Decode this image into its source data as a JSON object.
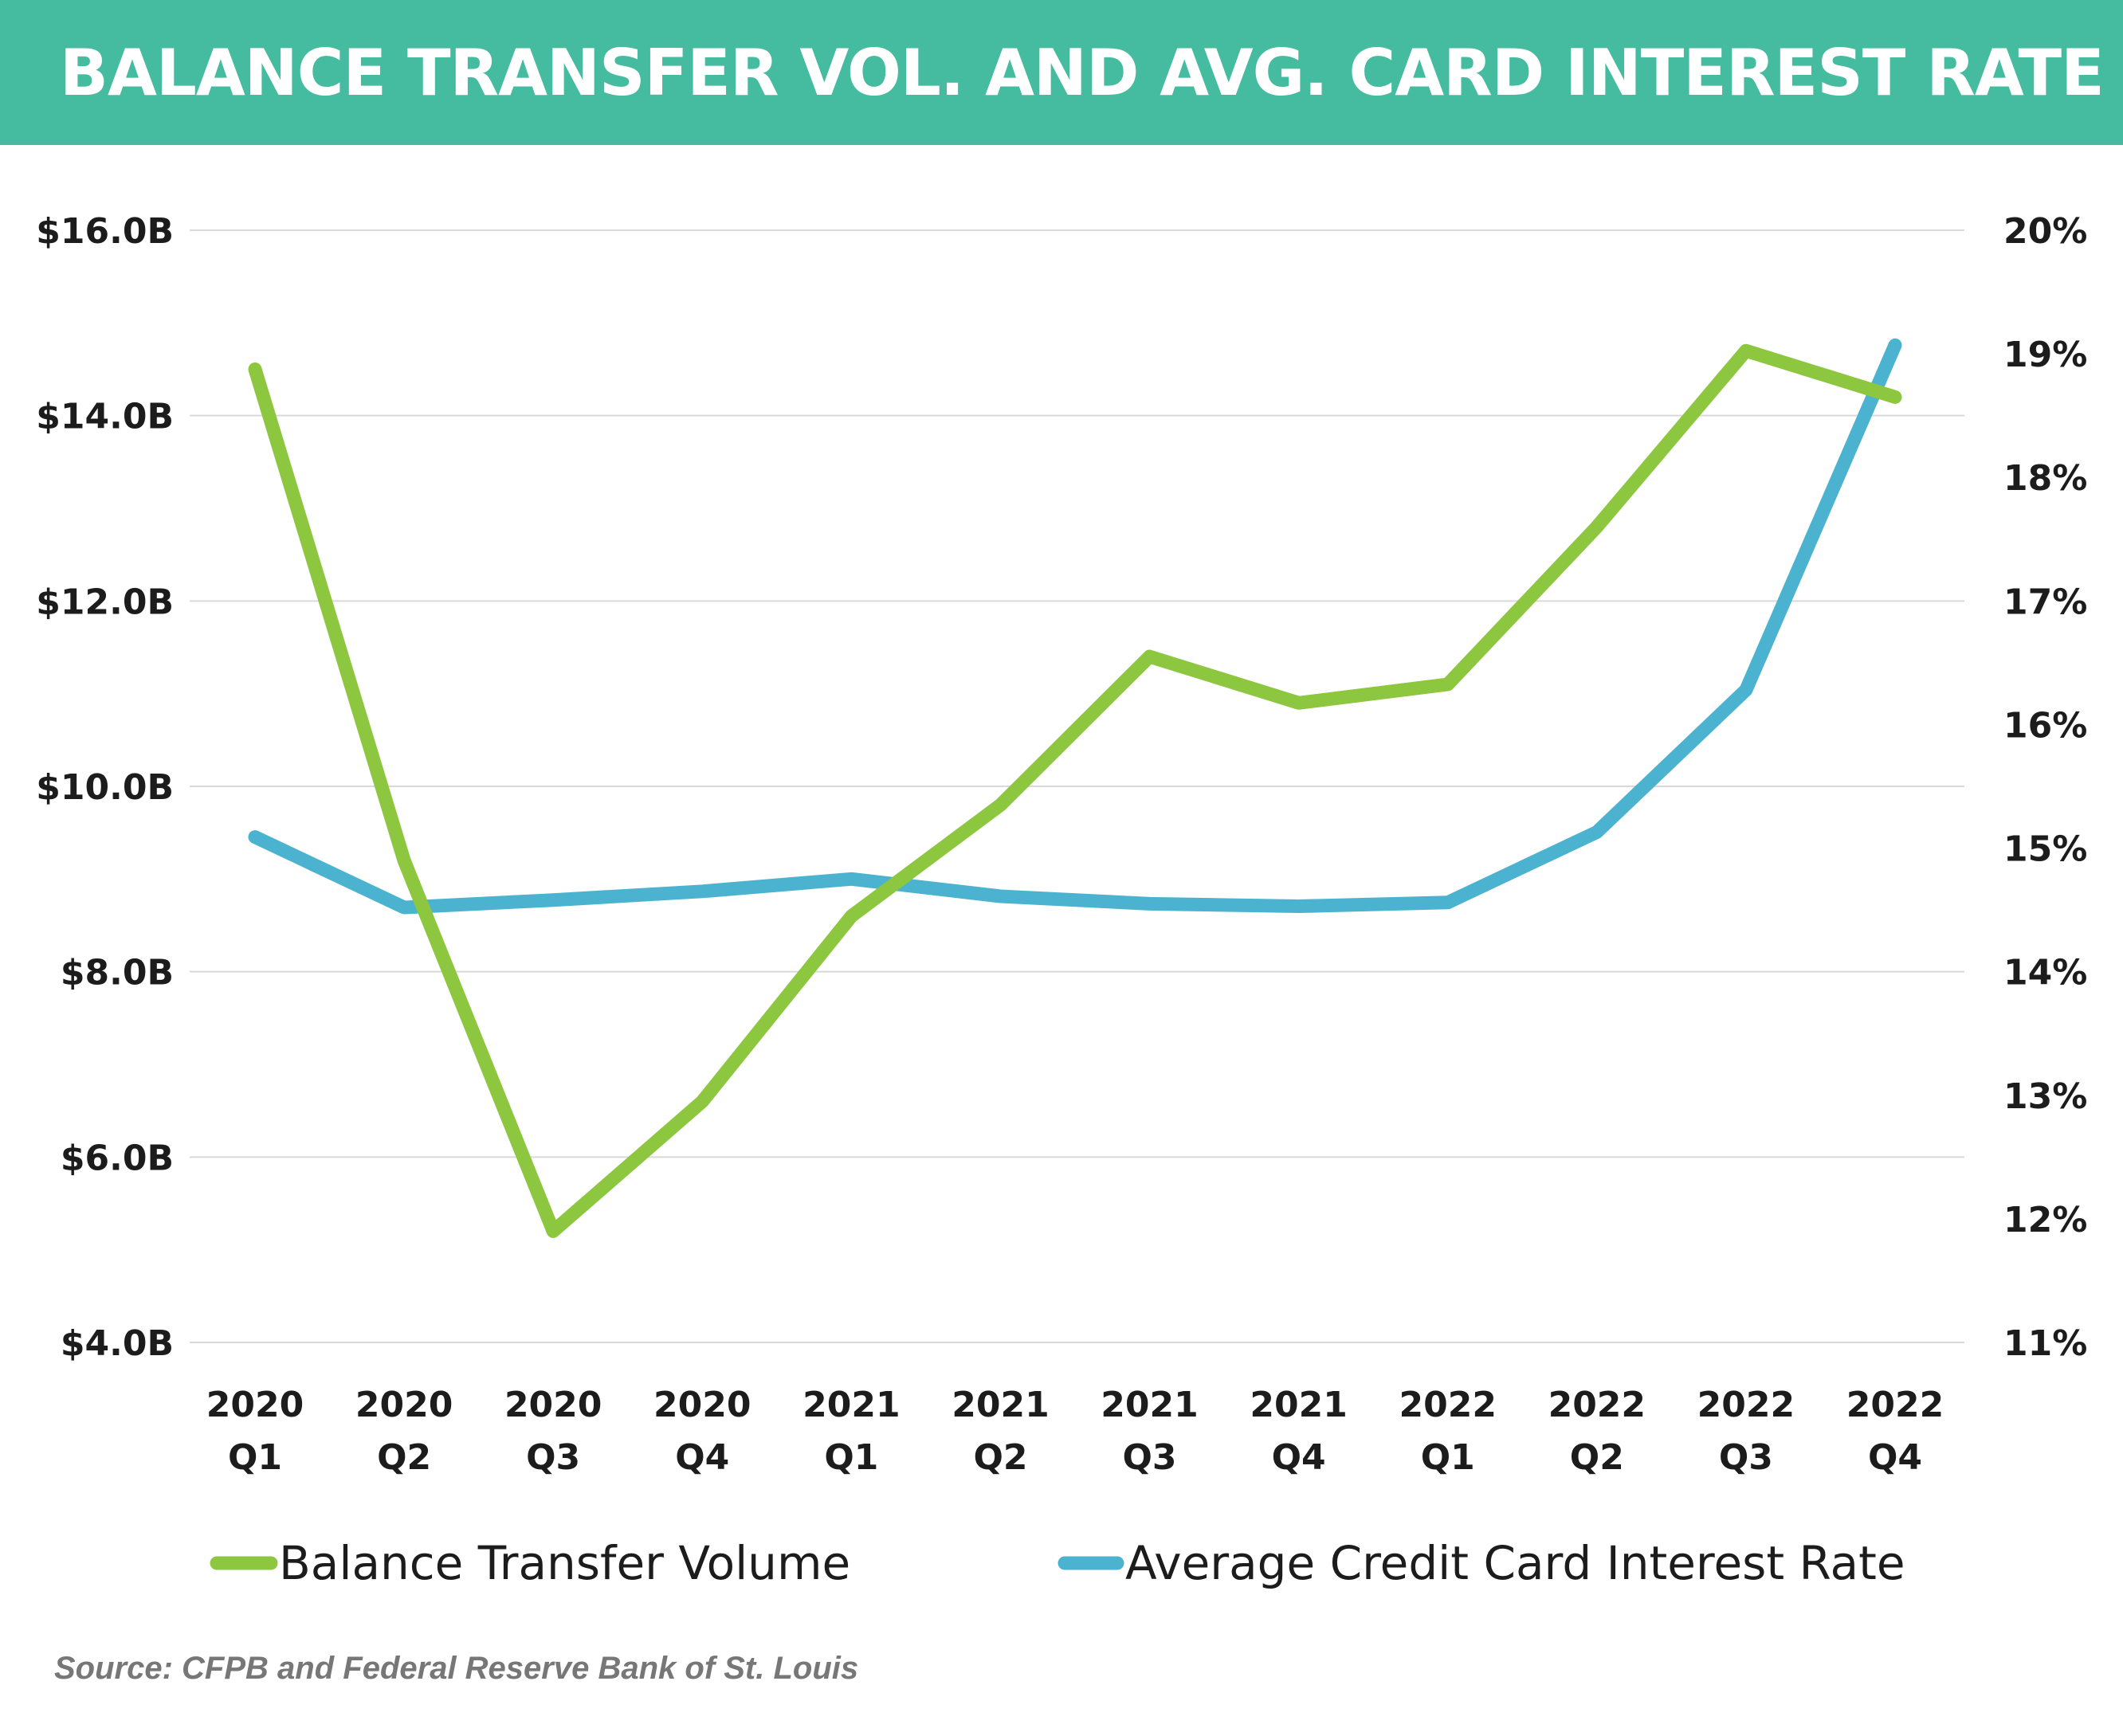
{
  "title": "BALANCE TRANSFER VOL. AND AVG. CARD INTEREST RATE",
  "source": "Source: CFPB and Federal Reserve Bank of St. Louis",
  "colors": {
    "header": "#45bc9f",
    "balance_transfer": "#8dc63f",
    "interest_rate": "#4bb3cf",
    "grid": "#d9d9d9"
  },
  "chart_data": {
    "type": "line",
    "title": "BALANCE TRANSFER VOL. AND AVG. CARD INTEREST RATE",
    "categories": [
      [
        "2020",
        "Q1"
      ],
      [
        "2020",
        "Q2"
      ],
      [
        "2020",
        "Q3"
      ],
      [
        "2020",
        "Q4"
      ],
      [
        "2021",
        "Q1"
      ],
      [
        "2021",
        "Q2"
      ],
      [
        "2021",
        "Q3"
      ],
      [
        "2021",
        "Q4"
      ],
      [
        "2022",
        "Q1"
      ],
      [
        "2022",
        "Q2"
      ],
      [
        "2022",
        "Q3"
      ],
      [
        "2022",
        "Q4"
      ]
    ],
    "left_axis": {
      "ylim": [
        4.0,
        16.0
      ],
      "ticks": [
        4.0,
        6.0,
        8.0,
        10.0,
        12.0,
        14.0,
        16.0
      ],
      "tick_labels": [
        "$4.0B",
        "$6.0B",
        "$8.0B",
        "$10.0B",
        "$12.0B",
        "$14.0B",
        "$16.0B"
      ]
    },
    "right_axis": {
      "ylim": [
        11,
        20
      ],
      "ticks": [
        11,
        12,
        13,
        14,
        15,
        16,
        17,
        18,
        19,
        20
      ],
      "tick_labels": [
        "11%",
        "12%",
        "13%",
        "14%",
        "15%",
        "16%",
        "17%",
        "18%",
        "19%",
        "20%"
      ]
    },
    "grid": true,
    "legend_position": "bottom",
    "series": [
      {
        "name": "Balance Transfer Volume",
        "axis": "left",
        "color": "#8dc63f",
        "values": [
          14.5,
          9.2,
          5.2,
          6.6,
          8.6,
          9.8,
          11.4,
          10.9,
          11.1,
          12.8,
          14.7,
          14.2
        ]
      },
      {
        "name": "Average Credit Card Interest Rate",
        "axis": "right",
        "color": "#4bb3cf",
        "values": [
          15.09,
          14.52,
          14.58,
          14.65,
          14.75,
          14.61,
          14.55,
          14.53,
          14.56,
          15.13,
          16.28,
          19.07
        ]
      }
    ]
  }
}
